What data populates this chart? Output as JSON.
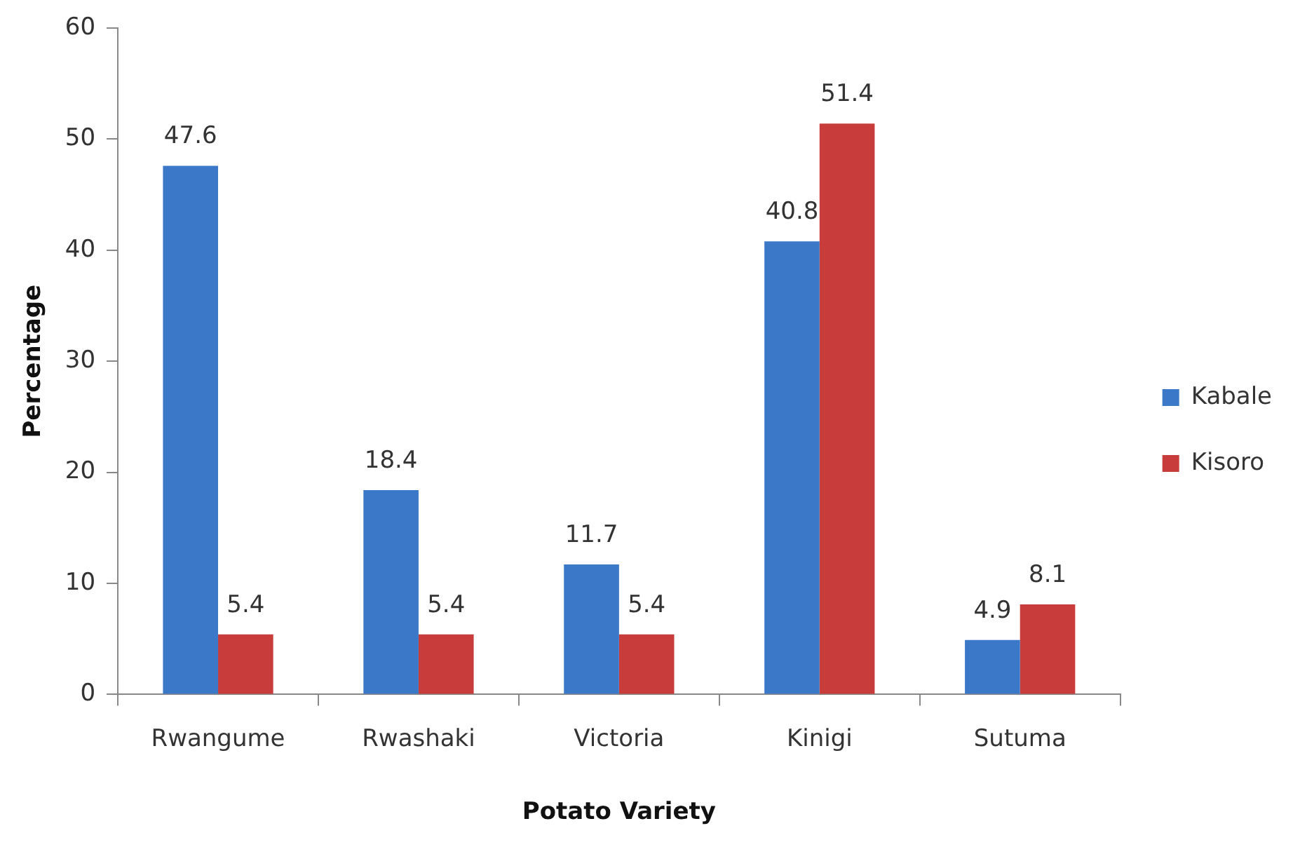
{
  "chart_data": {
    "type": "bar",
    "xlabel": "Potato Variety",
    "ylabel": "Percentage",
    "categories": [
      "Rwangume",
      "Rwashaki",
      "Victoria",
      "Kinigi",
      "Sutuma"
    ],
    "series": [
      {
        "name": "Kabale",
        "color": "#3c78c8",
        "values": [
          47.6,
          18.4,
          11.7,
          40.8,
          4.9
        ]
      },
      {
        "name": "Kisoro",
        "color": "#c83c3c",
        "values": [
          5.4,
          5.4,
          5.4,
          51.4,
          8.1
        ]
      }
    ],
    "ylim": [
      0,
      60
    ],
    "yticks": [
      0,
      10,
      20,
      30,
      40,
      50,
      60
    ],
    "grid": false,
    "legend": "right",
    "data_labels": true
  }
}
